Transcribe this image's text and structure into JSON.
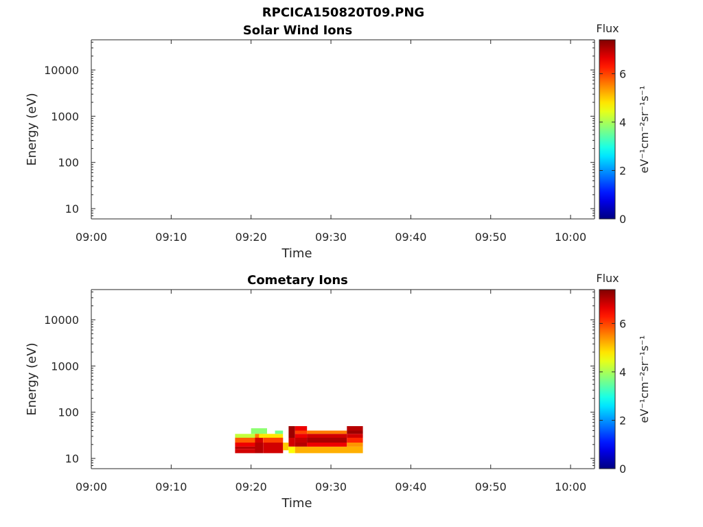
{
  "figure": {
    "title": "RPCICA150820T09.PNG"
  },
  "chart_data": [
    {
      "type": "heatmap",
      "title": "Solar Wind Ions",
      "xlabel": "Time",
      "ylabel": "Energy (eV)",
      "x_ticks": [
        "09:00",
        "09:10",
        "09:20",
        "09:30",
        "09:40",
        "09:50",
        "10:00"
      ],
      "xlim_minutes_from_0900": [
        0,
        63
      ],
      "y_scale": "log",
      "y_ticks": [
        "10",
        "100",
        "1000",
        "10000"
      ],
      "ylim": [
        6,
        45000
      ],
      "colorbar": {
        "label": "Flux",
        "units": "eV⁻¹cm⁻²sr⁻¹s⁻¹",
        "range": [
          0,
          7.4
        ],
        "ticks": [
          "0",
          "2",
          "4",
          "6"
        ],
        "colormap": "jet"
      },
      "cells": []
    },
    {
      "type": "heatmap",
      "title": "Cometary Ions",
      "xlabel": "Time",
      "ylabel": "Energy (eV)",
      "x_ticks": [
        "09:00",
        "09:10",
        "09:20",
        "09:30",
        "09:40",
        "09:50",
        "10:00"
      ],
      "xlim_minutes_from_0900": [
        0,
        63
      ],
      "y_scale": "log",
      "y_ticks": [
        "10",
        "100",
        "1000",
        "10000"
      ],
      "ylim": [
        6,
        45000
      ],
      "colorbar": {
        "label": "Flux",
        "units": "eV⁻¹cm⁻²sr⁻¹s⁻¹",
        "range": [
          0,
          7.4
        ],
        "ticks": [
          "0",
          "2",
          "4",
          "6"
        ],
        "colormap": "jet"
      },
      "cells": [
        {
          "t0": 18.0,
          "t1": 21.0,
          "e0": 28,
          "e1": 34,
          "v": 4.2
        },
        {
          "t0": 18.0,
          "t1": 21.0,
          "e0": 22,
          "e1": 28,
          "v": 5.8
        },
        {
          "t0": 18.0,
          "t1": 20.5,
          "e0": 18,
          "e1": 22,
          "v": 6.6
        },
        {
          "t0": 18.0,
          "t1": 20.5,
          "e0": 16,
          "e1": 18,
          "v": 7.0
        },
        {
          "t0": 18.0,
          "t1": 20.5,
          "e0": 13,
          "e1": 16,
          "v": 6.8
        },
        {
          "t0": 20.0,
          "t1": 22.0,
          "e0": 34,
          "e1": 45,
          "v": 3.8
        },
        {
          "t0": 20.5,
          "t1": 21.5,
          "e0": 28,
          "e1": 34,
          "v": 5.6
        },
        {
          "t0": 20.5,
          "t1": 21.5,
          "e0": 22,
          "e1": 28,
          "v": 6.8
        },
        {
          "t0": 20.5,
          "t1": 21.5,
          "e0": 13,
          "e1": 22,
          "v": 7.0
        },
        {
          "t0": 21.0,
          "t1": 24.0,
          "e0": 28,
          "e1": 34,
          "v": 4.8
        },
        {
          "t0": 21.5,
          "t1": 24.0,
          "e0": 22,
          "e1": 28,
          "v": 6.0
        },
        {
          "t0": 21.5,
          "t1": 24.0,
          "e0": 13,
          "e1": 22,
          "v": 6.8
        },
        {
          "t0": 23.0,
          "t1": 24.0,
          "e0": 34,
          "e1": 40,
          "v": 3.6
        },
        {
          "t0": 24.0,
          "t1": 24.7,
          "e0": 15,
          "e1": 22,
          "v": 5.0
        },
        {
          "t0": 24.7,
          "t1": 25.5,
          "e0": 13,
          "e1": 18,
          "v": 4.6
        },
        {
          "t0": 24.7,
          "t1": 25.5,
          "e0": 18,
          "e1": 28,
          "v": 6.8
        },
        {
          "t0": 24.7,
          "t1": 25.5,
          "e0": 28,
          "e1": 50,
          "v": 7.2
        },
        {
          "t0": 25.5,
          "t1": 27.0,
          "e0": 40,
          "e1": 50,
          "v": 6.6
        },
        {
          "t0": 25.5,
          "t1": 27.0,
          "e0": 34,
          "e1": 40,
          "v": 6.0
        },
        {
          "t0": 25.5,
          "t1": 27.0,
          "e0": 28,
          "e1": 34,
          "v": 6.6
        },
        {
          "t0": 25.5,
          "t1": 27.0,
          "e0": 22,
          "e1": 28,
          "v": 6.9
        },
        {
          "t0": 25.5,
          "t1": 27.0,
          "e0": 18,
          "e1": 22,
          "v": 7.0
        },
        {
          "t0": 25.5,
          "t1": 34.0,
          "e0": 13,
          "e1": 18,
          "v": 5.2
        },
        {
          "t0": 27.0,
          "t1": 32.0,
          "e0": 34,
          "e1": 40,
          "v": 5.6
        },
        {
          "t0": 27.0,
          "t1": 32.0,
          "e0": 28,
          "e1": 34,
          "v": 6.8
        },
        {
          "t0": 27.0,
          "t1": 32.0,
          "e0": 22,
          "e1": 28,
          "v": 7.1
        },
        {
          "t0": 27.0,
          "t1": 32.0,
          "e0": 18,
          "e1": 22,
          "v": 6.6
        },
        {
          "t0": 32.0,
          "t1": 34.0,
          "e0": 40,
          "e1": 50,
          "v": 7.0
        },
        {
          "t0": 32.0,
          "t1": 34.0,
          "e0": 34,
          "e1": 40,
          "v": 7.2
        },
        {
          "t0": 32.0,
          "t1": 34.0,
          "e0": 28,
          "e1": 34,
          "v": 6.8
        },
        {
          "t0": 32.0,
          "t1": 34.0,
          "e0": 22,
          "e1": 28,
          "v": 6.2
        },
        {
          "t0": 32.0,
          "t1": 34.0,
          "e0": 18,
          "e1": 22,
          "v": 5.4
        }
      ]
    }
  ]
}
